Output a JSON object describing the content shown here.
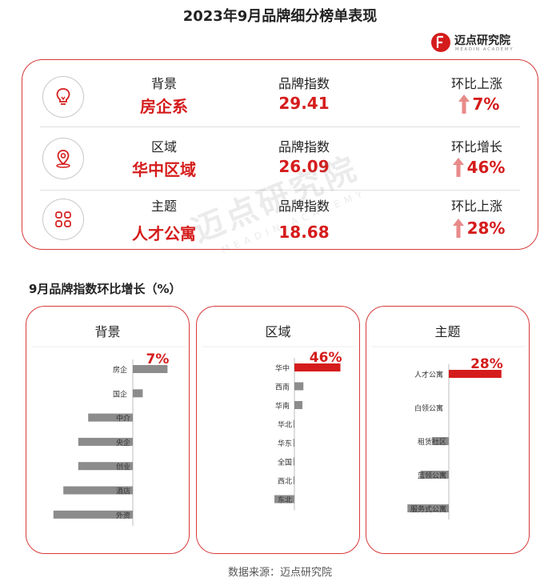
{
  "header": {
    "title": "2023年9月品牌细分榜单表现",
    "brand_name": "迈点研究院",
    "brand_sub": "MEADIN ACADEMY"
  },
  "summary": {
    "rows": [
      {
        "icon": "lightbulb-icon",
        "category": "背景",
        "value": "房企系",
        "metric_label": "品牌指数",
        "metric_value": "29.41",
        "change_label": "环比上涨",
        "change_value": "7%"
      },
      {
        "icon": "map-pin-icon",
        "category": "区域",
        "value": "华中区域",
        "metric_label": "品牌指数",
        "metric_value": "26.09",
        "change_label": "环比增长",
        "change_value": "46%"
      },
      {
        "icon": "grid-icon",
        "category": "主题",
        "value": "人才公寓",
        "metric_label": "品牌指数",
        "metric_value": "18.68",
        "change_label": "环比上涨",
        "change_value": "28%"
      }
    ]
  },
  "subtitle": "9月品牌指数环比增长（%）",
  "watermark": {
    "main": "迈点研究院",
    "sub": "MEADIN ACADEMY"
  },
  "source": "数据来源：迈点研究院",
  "colors": {
    "accent": "#d51c1c",
    "border": "#d83a3a",
    "negative_bar": "#8c8c8c"
  },
  "chart_data": [
    {
      "type": "bar",
      "orientation": "horizontal",
      "title": "背景",
      "categories": [
        "房企",
        "国企",
        "中介",
        "央企",
        "创业",
        "酒店",
        "外资"
      ],
      "values": [
        7,
        2,
        -9,
        -11,
        -11,
        -14,
        -16
      ],
      "data_labels": [
        "7%",
        "",
        "",
        "",
        "",
        "",
        ""
      ]
    },
    {
      "type": "bar",
      "orientation": "horizontal",
      "title": "区域",
      "categories": [
        "华中",
        "西南",
        "华南",
        "华北",
        "华东",
        "全国",
        "西北",
        "东北"
      ],
      "values": [
        46,
        9,
        8,
        -1,
        -1,
        -1,
        -1,
        -20
      ],
      "data_labels": [
        "46%",
        "",
        "",
        "",
        "",
        "",
        "",
        ""
      ]
    },
    {
      "type": "bar",
      "orientation": "horizontal",
      "title": "主题",
      "categories": [
        "人才公寓",
        "白领公寓",
        "租赁社区",
        "蓝领公寓",
        "服务式公寓"
      ],
      "values": [
        28,
        0,
        -9,
        -15,
        -22
      ],
      "data_labels": [
        "28%",
        "",
        "",
        "",
        ""
      ]
    }
  ]
}
